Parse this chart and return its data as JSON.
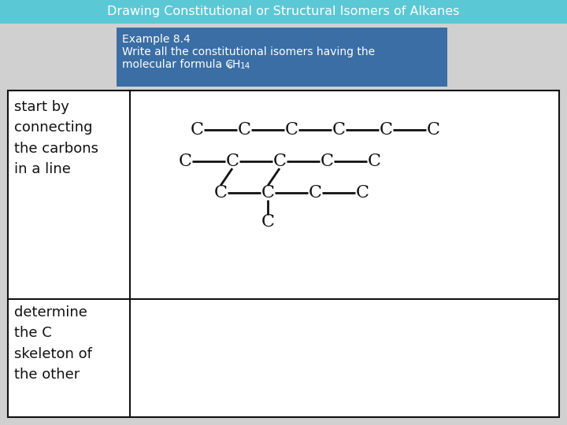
{
  "title": "Drawing Constitutional or Structural Isomers of Alkanes",
  "title_bg": "#5bc8d5",
  "title_text_color": "#ffffff",
  "example_bg": "#3a6ea5",
  "example_text_color": "#ffffff",
  "example_title": "Example 8.4",
  "example_line1": "Write all the constitutional isomers having the",
  "example_line2": "molecular formula C",
  "cell1_text": "start by\nconnecting\nthe carbons\nin a line",
  "cell2_text": "determine\nthe C\nskeleton of\nthe other",
  "table_border_color": "#111111",
  "bg_color": "#d0d0d0",
  "cell_bg": "#ffffff"
}
